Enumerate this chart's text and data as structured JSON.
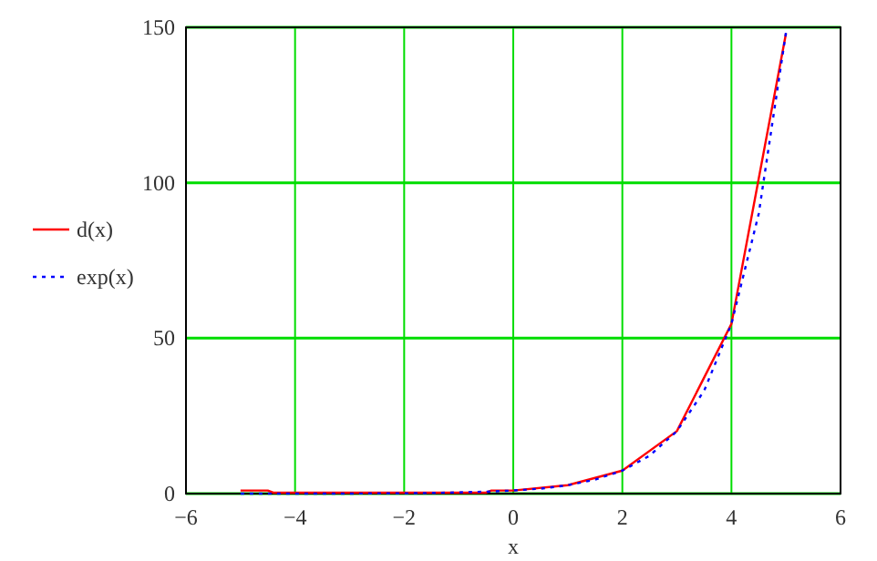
{
  "chart_data": {
    "type": "line",
    "xlabel": "x",
    "xlim": [
      -6,
      6
    ],
    "xticks": [
      -6,
      -4,
      -2,
      0,
      2,
      4,
      6
    ],
    "ylim": [
      0,
      150
    ],
    "yticks": [
      0,
      50,
      100,
      150
    ],
    "grid": true,
    "legend": "left",
    "series": [
      {
        "name": "d(x)",
        "color": "#ff0000",
        "line_style": "solid",
        "x": [
          -5,
          -4.5,
          -4.4,
          -0.5,
          -0.4,
          0,
          1,
          2,
          3,
          4,
          5
        ],
        "values": [
          1,
          1,
          0.3,
          0.3,
          1,
          1,
          2.7,
          7.4,
          20.1,
          54.6,
          148
        ]
      },
      {
        "name": "exp(x)",
        "color": "#0000ff",
        "line_style": "dotted",
        "x": [
          -5,
          -4.5,
          -4,
          -3.5,
          -3,
          -2.5,
          -2,
          -1.5,
          -1,
          -0.5,
          0,
          0.5,
          1,
          1.5,
          2,
          2.5,
          3,
          3.5,
          4,
          4.5,
          5
        ],
        "values": [
          0,
          0,
          0,
          0,
          0,
          0.1,
          0.1,
          0.2,
          0.4,
          0.6,
          1,
          1.6,
          2.7,
          4.5,
          7.4,
          12.2,
          20.1,
          33.1,
          54.6,
          90,
          148.4
        ]
      }
    ]
  }
}
